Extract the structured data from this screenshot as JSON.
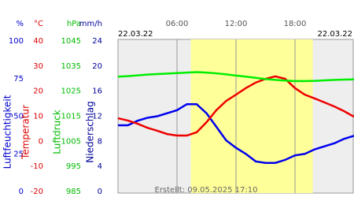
{
  "chart_data": {
    "type": "line",
    "date_left": "22.03.22",
    "date_right": "22.03.22",
    "annotation": "Erstellt: 09.05.2025 17:10",
    "xlim": [
      0,
      24
    ],
    "xticks": [
      {
        "value": 6,
        "label": "06:00"
      },
      {
        "value": 12,
        "label": "12:00"
      },
      {
        "value": 18,
        "label": "18:00"
      }
    ],
    "daylight": [
      7.4,
      19.8
    ],
    "y_axes": [
      {
        "unit": "%",
        "label": "Luftfeuchtigkeit",
        "color": "#0000cc",
        "ylim": [
          0,
          100
        ],
        "yticks": [
          0,
          25,
          50,
          75,
          100
        ]
      },
      {
        "unit": "°C",
        "label": "Temperatur",
        "color": "#dd0000",
        "ylim": [
          -20,
          40
        ],
        "yticks": [
          -20,
          -10,
          0,
          10,
          20,
          30,
          40
        ]
      },
      {
        "unit": "hPa",
        "label": "Luftdruck",
        "color": "#00bb00",
        "ylim": [
          985,
          1045
        ],
        "yticks": [
          985,
          995,
          1005,
          1015,
          1025,
          1035,
          1045
        ]
      },
      {
        "unit": "mm/h",
        "label": "Niederschlag",
        "color": "#000099",
        "ylim": [
          0,
          24
        ],
        "yticks": [
          0,
          4,
          8,
          12,
          16,
          20,
          24
        ]
      }
    ],
    "x": [
      0,
      1,
      2,
      3,
      4,
      5,
      6,
      7,
      8,
      9,
      10,
      11,
      12,
      13,
      14,
      15,
      16,
      17,
      18,
      19,
      20,
      21,
      22,
      23,
      24
    ],
    "series": [
      {
        "name": "Luftfeuchtigkeit",
        "axis": "%",
        "color": "#0000ee",
        "values": [
          44,
          44,
          47,
          49,
          50,
          52,
          54,
          58,
          58,
          52,
          43,
          34,
          29,
          25,
          20,
          19,
          19,
          21,
          24,
          25,
          28,
          30,
          32,
          35,
          37
        ]
      },
      {
        "name": "Temperatur",
        "axis": "°C",
        "color": "#ee0000",
        "values": [
          9.2,
          8.3,
          7.0,
          5.4,
          4.2,
          2.9,
          2.3,
          2.3,
          3.6,
          7.6,
          12.4,
          16.1,
          18.6,
          21.2,
          23.4,
          24.9,
          25.9,
          24.9,
          21.2,
          18.6,
          17.1,
          15.5,
          13.9,
          12.0,
          9.8
        ]
      },
      {
        "name": "Luftdruck",
        "axis": "hPa",
        "color": "#00ee00",
        "values": [
          1030.8,
          1031.0,
          1031.3,
          1031.6,
          1031.8,
          1032.0,
          1032.2,
          1032.4,
          1032.6,
          1032.4,
          1032.1,
          1031.7,
          1031.2,
          1030.8,
          1030.3,
          1029.8,
          1029.5,
          1029.2,
          1029.0,
          1029.0,
          1029.1,
          1029.3,
          1029.5,
          1029.6,
          1029.7
        ]
      }
    ]
  }
}
